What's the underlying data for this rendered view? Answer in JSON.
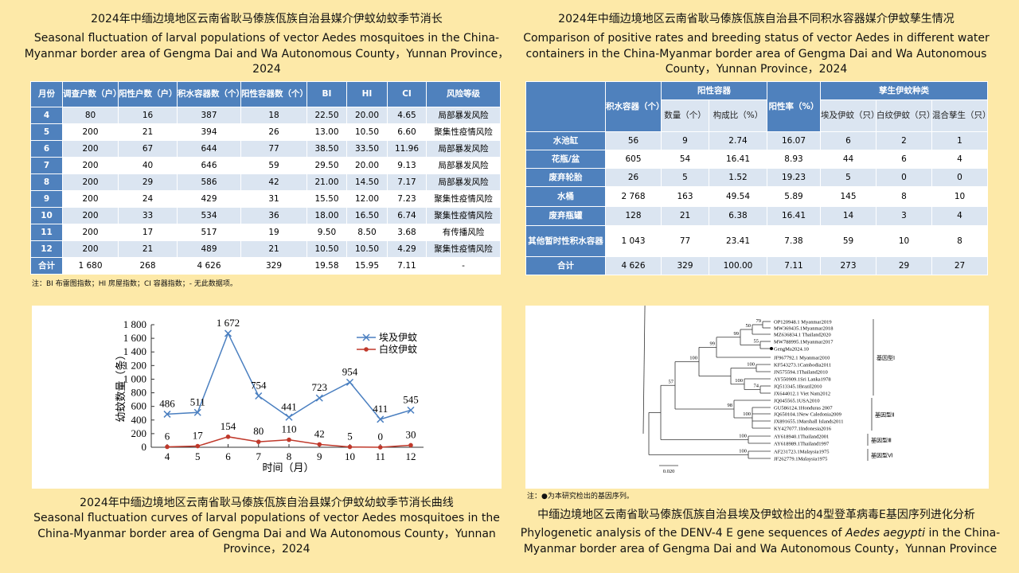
{
  "table1": {
    "title_zh": "2024年中缅边境地区云南省耿马傣族佤族自治县媒介伊蚊幼蚊季节消长",
    "title_en": "Seasonal fluctuation of larval populations of vector Aedes mosquitoes in the China-Myanmar border area of Gengma Dai and Wa Autonomous County，Yunnan Province，2024",
    "headers": [
      "月份",
      "调查户数（户）",
      "阳性户数（户）",
      "积水容器数（个）",
      "阳性容器数（个）",
      "BI",
      "HI",
      "CI",
      "风险等级"
    ],
    "rows": [
      [
        "4",
        "80",
        "16",
        "387",
        "18",
        "22.50",
        "20.00",
        "4.65",
        "局部暴发风险"
      ],
      [
        "5",
        "200",
        "21",
        "394",
        "26",
        "13.00",
        "10.50",
        "6.60",
        "聚集性疫情风险"
      ],
      [
        "6",
        "200",
        "67",
        "644",
        "77",
        "38.50",
        "33.50",
        "11.96",
        "局部暴发风险"
      ],
      [
        "7",
        "200",
        "40",
        "646",
        "59",
        "29.50",
        "20.00",
        "9.13",
        "局部暴发风险"
      ],
      [
        "8",
        "200",
        "29",
        "586",
        "42",
        "21.00",
        "14.50",
        "7.17",
        "局部暴发风险"
      ],
      [
        "9",
        "200",
        "24",
        "429",
        "31",
        "15.50",
        "12.00",
        "7.23",
        "聚集性疫情风险"
      ],
      [
        "10",
        "200",
        "33",
        "534",
        "36",
        "18.00",
        "16.50",
        "6.74",
        "聚集性疫情风险"
      ],
      [
        "11",
        "200",
        "17",
        "517",
        "19",
        "9.50",
        "8.50",
        "3.68",
        "有传播风险"
      ],
      [
        "12",
        "200",
        "21",
        "489",
        "21",
        "10.50",
        "10.50",
        "4.29",
        "聚集性疫情风险"
      ],
      [
        "合计",
        "1 680",
        "268",
        "4 626",
        "329",
        "19.58",
        "15.95",
        "7.11",
        "-"
      ]
    ],
    "note": "注：BI 布雷图指数；HI 房屋指数；CI 容器指数；- 无此数据项。"
  },
  "table2": {
    "title_zh": "2024年中缅边境地区云南省耿马傣族佤族自治县不同积水容器媒介伊蚊孳生情况",
    "title_en": "Comparison of positive rates and breeding status of vector Aedes in different water containers in the China-Myanmar border area of Gengma Dai and Wa Autonomous County，Yunnan Province，2024",
    "header_top": [
      "积水容器（个）",
      "阳性容器",
      "阳性率（%）",
      "孳生伊蚊种类"
    ],
    "header_sub": [
      "数量（个）",
      "构成比（%）",
      "埃及伊蚊（只）",
      "白纹伊蚊（只）",
      "混合孳生（只）"
    ],
    "rows": [
      [
        "水池缸",
        "56",
        "9",
        "2.74",
        "16.07",
        "6",
        "2",
        "1"
      ],
      [
        "花瓶/盆",
        "605",
        "54",
        "16.41",
        "8.93",
        "44",
        "6",
        "4"
      ],
      [
        "废弃轮胎",
        "26",
        "5",
        "1.52",
        "19.23",
        "5",
        "0",
        "0"
      ],
      [
        "水桶",
        "2 768",
        "163",
        "49.54",
        "5.89",
        "145",
        "8",
        "10"
      ],
      [
        "废弃瓶罐",
        "128",
        "21",
        "6.38",
        "16.41",
        "14",
        "3",
        "4"
      ],
      [
        "其他暂时性积水容器",
        "1 043",
        "77",
        "23.41",
        "7.38",
        "59",
        "10",
        "8"
      ],
      [
        "合计",
        "4 626",
        "329",
        "100.00",
        "7.11",
        "273",
        "29",
        "27"
      ]
    ]
  },
  "chart_data": {
    "type": "line",
    "x_label": "时间（月）",
    "y_label": "幼蚊数量（条）",
    "categories": [
      "4",
      "5",
      "6",
      "7",
      "8",
      "9",
      "10",
      "11",
      "12"
    ],
    "series": [
      {
        "name": "埃及伊蚊",
        "color": "#4a7fc0",
        "marker": "x",
        "values": [
          486,
          511,
          1672,
          754,
          441,
          723,
          954,
          411,
          545
        ],
        "value_labels": [
          "486",
          "511",
          "1 672",
          "754",
          "441",
          "723",
          "954",
          "411",
          "545"
        ]
      },
      {
        "name": "白纹伊蚊",
        "color": "#c0392b",
        "marker": "circle",
        "values": [
          6,
          17,
          154,
          80,
          110,
          42,
          5,
          0,
          30
        ]
      }
    ],
    "ylim": [
      0,
      1800
    ],
    "yticks": [
      0,
      200,
      400,
      600,
      800,
      {
        "value": 1000,
        "label": "1 000"
      },
      {
        "value": 1200,
        "label": "1 200"
      },
      {
        "value": 1400,
        "label": "1 400"
      },
      {
        "value": 1600,
        "label": "1 600"
      },
      {
        "value": 1800,
        "label": "1 800"
      }
    ]
  },
  "figure1": {
    "caption_zh": "2024年中缅边境地区云南省耿马傣族佤族自治县媒介伊蚊幼蚊季节消长曲线",
    "caption_en": "Seasonal fluctuation curves of larval populations of vector Aedes mosquitoes in the China-Myanmar border area of Gengma Dai and Wa Autonomous County，Yunnan Province，2024"
  },
  "tree": {
    "leaves": [
      "OP120948.1 Myanmar2019",
      "MW369435.1Myanmar2018",
      "MZ636834.1 Thailand2020",
      "MW788995.1Myanmar2017",
      "GengMa2024.10",
      "JF967792.1 Myanmar2010",
      "KF543273.1Cambodia2011",
      "JN575594.1Thailand2010",
      "AY550909.1Sri Lanka1978",
      "JQ513345.1Brazil2010",
      "JX644012.1 Viet Nam2012",
      "JQ045565.1USA2010",
      "GU586124.1Honduras 2007",
      "JQ650104.1New Caledonia2009",
      "JX891655.1Marshall Islands2011",
      "KY427077.1Indonesia2016",
      "AY618940.1Thailand2001",
      "AY618989.1Thailand1997",
      "AF231723.1Malaysia1975",
      "JF262779.1Malaysia1975"
    ],
    "bootstrap": [
      "79",
      "50",
      "99",
      "55",
      "99",
      "100",
      "100",
      "74",
      "57",
      "98",
      "100",
      "100",
      "100",
      "100"
    ],
    "genotypes": [
      "基因型Ⅰ",
      "基因型Ⅱ",
      "基因型Ⅲ",
      "基因型Ⅵ"
    ],
    "scale": "0.020",
    "note": "注：●为本研究检出的基因序列。",
    "caption_zh": "中缅边境地区云南省耿马傣族佤族自治县埃及伊蚊检出的4型登革病毒E基因序列进化分析",
    "caption_en_parts": [
      "Phylogenetic analysis of the DENV-4 E gene sequences of ",
      "Aedes aegypti",
      " in the China-Myanmar border area of Gengma Dai and Wa Autonomous County，Yunnan Province"
    ]
  }
}
